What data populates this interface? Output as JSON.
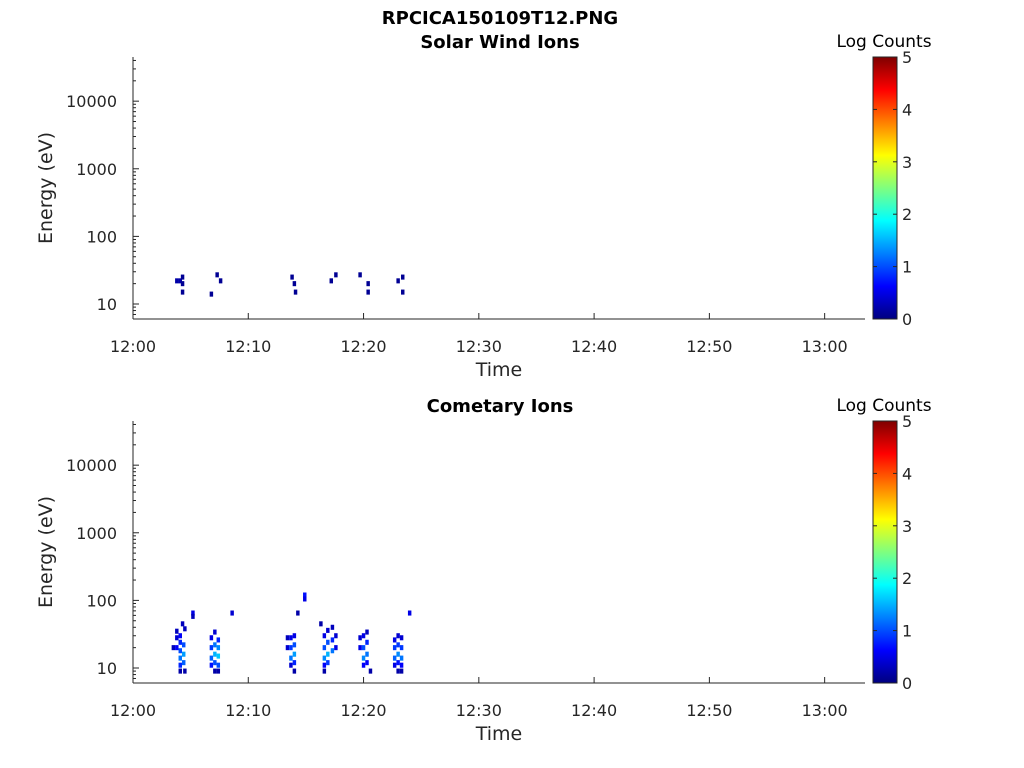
{
  "figure": {
    "suptitle": "RPCICA150109T12.PNG"
  },
  "colorbar": {
    "label": "Log Counts",
    "ticks": [
      "0",
      "1",
      "2",
      "3",
      "4",
      "5"
    ],
    "range": [
      0,
      5
    ],
    "colormap": "jet"
  },
  "chart_data": [
    {
      "type": "heatmap",
      "title": "Solar Wind Ions",
      "xlabel": "Time",
      "ylabel": "Energy (eV)",
      "x_ticks": [
        "12:00",
        "12:10",
        "12:20",
        "12:30",
        "12:40",
        "12:50",
        "13:00"
      ],
      "x_range_minutes": [
        0,
        63.5
      ],
      "y_ticks": [
        "10",
        "100",
        "1000",
        "10000"
      ],
      "y_scale": "log",
      "y_range": [
        6,
        45000
      ],
      "grid": false,
      "cells": [
        {
          "t": 3.8,
          "e": 22,
          "v": 0.2
        },
        {
          "t": 4.1,
          "e": 22,
          "v": 0.2
        },
        {
          "t": 4.3,
          "e": 20,
          "v": 0.1
        },
        {
          "t": 4.3,
          "e": 25,
          "v": 0.1
        },
        {
          "t": 4.3,
          "e": 15,
          "v": 0.1
        },
        {
          "t": 6.8,
          "e": 14,
          "v": 0.1
        },
        {
          "t": 7.3,
          "e": 27,
          "v": 0.1
        },
        {
          "t": 7.6,
          "e": 22,
          "v": 0.1
        },
        {
          "t": 13.8,
          "e": 25,
          "v": 0.1
        },
        {
          "t": 14.0,
          "e": 20,
          "v": 0.1
        },
        {
          "t": 14.1,
          "e": 15,
          "v": 0.1
        },
        {
          "t": 17.2,
          "e": 22,
          "v": 0.1
        },
        {
          "t": 17.6,
          "e": 27,
          "v": 0.1
        },
        {
          "t": 19.7,
          "e": 27,
          "v": 0.1
        },
        {
          "t": 20.4,
          "e": 20,
          "v": 0.1
        },
        {
          "t": 20.4,
          "e": 15,
          "v": 0.1
        },
        {
          "t": 23.0,
          "e": 22,
          "v": 0.1
        },
        {
          "t": 23.4,
          "e": 25,
          "v": 0.1
        },
        {
          "t": 23.4,
          "e": 15,
          "v": 0.1
        }
      ]
    },
    {
      "type": "heatmap",
      "title": "Cometary Ions",
      "xlabel": "Time",
      "ylabel": "Energy (eV)",
      "x_ticks": [
        "12:00",
        "12:10",
        "12:20",
        "12:30",
        "12:40",
        "12:50",
        "13:00"
      ],
      "x_range_minutes": [
        0,
        63.5
      ],
      "y_ticks": [
        "10",
        "100",
        "1000",
        "10000"
      ],
      "y_scale": "log",
      "y_range": [
        6,
        45000
      ],
      "grid": false,
      "cells": [
        {
          "t": 3.5,
          "e": 20,
          "v": 0.3
        },
        {
          "t": 3.8,
          "e": 20,
          "v": 0.6
        },
        {
          "t": 3.8,
          "e": 28,
          "v": 0.4
        },
        {
          "t": 3.8,
          "e": 35,
          "v": 0.3
        },
        {
          "t": 4.1,
          "e": 14,
          "v": 1.2
        },
        {
          "t": 4.1,
          "e": 18,
          "v": 1.0
        },
        {
          "t": 4.1,
          "e": 24,
          "v": 0.8
        },
        {
          "t": 4.1,
          "e": 30,
          "v": 0.6
        },
        {
          "t": 4.1,
          "e": 11,
          "v": 0.8
        },
        {
          "t": 4.1,
          "e": 9,
          "v": 0.2
        },
        {
          "t": 4.3,
          "e": 45,
          "v": 0.3
        },
        {
          "t": 4.4,
          "e": 16,
          "v": 1.4
        },
        {
          "t": 4.4,
          "e": 22,
          "v": 1.0
        },
        {
          "t": 4.4,
          "e": 12,
          "v": 1.1
        },
        {
          "t": 4.5,
          "e": 38,
          "v": 0.3
        },
        {
          "t": 4.5,
          "e": 9,
          "v": 0.2
        },
        {
          "t": 5.2,
          "e": 65,
          "v": 0.5
        },
        {
          "t": 5.2,
          "e": 58,
          "v": 0.3
        },
        {
          "t": 6.8,
          "e": 14,
          "v": 1.1
        },
        {
          "t": 6.8,
          "e": 20,
          "v": 0.9
        },
        {
          "t": 6.8,
          "e": 28,
          "v": 0.5
        },
        {
          "t": 6.8,
          "e": 11,
          "v": 0.7
        },
        {
          "t": 7.1,
          "e": 16,
          "v": 1.5
        },
        {
          "t": 7.1,
          "e": 22,
          "v": 1.2
        },
        {
          "t": 7.1,
          "e": 34,
          "v": 0.4
        },
        {
          "t": 7.1,
          "e": 12,
          "v": 1.0
        },
        {
          "t": 7.1,
          "e": 9,
          "v": 0.2
        },
        {
          "t": 7.4,
          "e": 15,
          "v": 1.6
        },
        {
          "t": 7.4,
          "e": 20,
          "v": 1.3
        },
        {
          "t": 7.4,
          "e": 26,
          "v": 0.8
        },
        {
          "t": 7.4,
          "e": 11,
          "v": 1.0
        },
        {
          "t": 7.4,
          "e": 9,
          "v": 0.2
        },
        {
          "t": 8.6,
          "e": 65,
          "v": 0.4
        },
        {
          "t": 13.4,
          "e": 20,
          "v": 0.4
        },
        {
          "t": 13.4,
          "e": 28,
          "v": 0.3
        },
        {
          "t": 13.7,
          "e": 14,
          "v": 1.2
        },
        {
          "t": 13.7,
          "e": 20,
          "v": 0.9
        },
        {
          "t": 13.7,
          "e": 28,
          "v": 0.5
        },
        {
          "t": 13.7,
          "e": 11,
          "v": 0.4
        },
        {
          "t": 14.0,
          "e": 16,
          "v": 1.4
        },
        {
          "t": 14.0,
          "e": 22,
          "v": 1.0
        },
        {
          "t": 14.0,
          "e": 30,
          "v": 0.5
        },
        {
          "t": 14.0,
          "e": 12,
          "v": 0.8
        },
        {
          "t": 14.0,
          "e": 9,
          "v": 0.2
        },
        {
          "t": 14.3,
          "e": 65,
          "v": 0.2
        },
        {
          "t": 14.9,
          "e": 120,
          "v": 0.7
        },
        {
          "t": 14.9,
          "e": 105,
          "v": 0.5
        },
        {
          "t": 16.3,
          "e": 45,
          "v": 0.2
        },
        {
          "t": 16.6,
          "e": 14,
          "v": 1.3
        },
        {
          "t": 16.6,
          "e": 20,
          "v": 1.0
        },
        {
          "t": 16.6,
          "e": 30,
          "v": 0.5
        },
        {
          "t": 16.6,
          "e": 11,
          "v": 0.6
        },
        {
          "t": 16.6,
          "e": 9,
          "v": 0.2
        },
        {
          "t": 16.9,
          "e": 16,
          "v": 1.5
        },
        {
          "t": 16.9,
          "e": 24,
          "v": 1.0
        },
        {
          "t": 16.9,
          "e": 36,
          "v": 0.4
        },
        {
          "t": 16.9,
          "e": 12,
          "v": 0.9
        },
        {
          "t": 17.3,
          "e": 18,
          "v": 1.2
        },
        {
          "t": 17.3,
          "e": 26,
          "v": 0.8
        },
        {
          "t": 17.3,
          "e": 40,
          "v": 0.3
        },
        {
          "t": 17.6,
          "e": 20,
          "v": 0.5
        },
        {
          "t": 17.6,
          "e": 30,
          "v": 0.4
        },
        {
          "t": 19.7,
          "e": 20,
          "v": 0.5
        },
        {
          "t": 19.7,
          "e": 28,
          "v": 0.4
        },
        {
          "t": 20.0,
          "e": 14,
          "v": 1.3
        },
        {
          "t": 20.0,
          "e": 20,
          "v": 1.0
        },
        {
          "t": 20.0,
          "e": 30,
          "v": 0.5
        },
        {
          "t": 20.0,
          "e": 11,
          "v": 0.6
        },
        {
          "t": 20.3,
          "e": 16,
          "v": 1.2
        },
        {
          "t": 20.3,
          "e": 24,
          "v": 0.8
        },
        {
          "t": 20.3,
          "e": 34,
          "v": 0.3
        },
        {
          "t": 20.3,
          "e": 12,
          "v": 0.6
        },
        {
          "t": 20.6,
          "e": 9,
          "v": 0.2
        },
        {
          "t": 22.7,
          "e": 14,
          "v": 1.1
        },
        {
          "t": 22.7,
          "e": 20,
          "v": 0.9
        },
        {
          "t": 22.7,
          "e": 26,
          "v": 0.5
        },
        {
          "t": 22.7,
          "e": 11,
          "v": 0.5
        },
        {
          "t": 23.0,
          "e": 16,
          "v": 1.3
        },
        {
          "t": 23.0,
          "e": 22,
          "v": 0.9
        },
        {
          "t": 23.0,
          "e": 30,
          "v": 0.4
        },
        {
          "t": 23.0,
          "e": 12,
          "v": 0.7
        },
        {
          "t": 23.0,
          "e": 9,
          "v": 0.2
        },
        {
          "t": 23.3,
          "e": 14,
          "v": 1.2
        },
        {
          "t": 23.3,
          "e": 20,
          "v": 0.9
        },
        {
          "t": 23.3,
          "e": 28,
          "v": 0.4
        },
        {
          "t": 23.3,
          "e": 11,
          "v": 0.6
        },
        {
          "t": 23.3,
          "e": 9,
          "v": 0.2
        },
        {
          "t": 24.0,
          "e": 65,
          "v": 0.5
        }
      ]
    }
  ]
}
